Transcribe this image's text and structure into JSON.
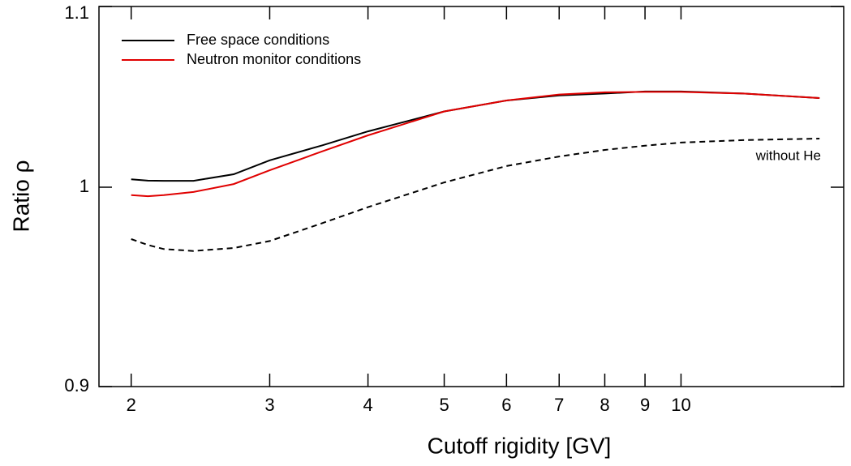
{
  "chart_data": {
    "type": "line",
    "xlabel": "Cutoff rigidity [GV]",
    "ylabel": "Ratio ρ",
    "x": [
      2,
      2.1,
      2.2,
      2.4,
      2.7,
      3,
      3.5,
      4,
      5,
      6,
      7,
      8,
      9,
      10,
      12,
      15
    ],
    "series": [
      {
        "name": "Free space conditions",
        "color": "#000000",
        "dash": false,
        "values": [
          1.004,
          1.0033,
          1.0032,
          1.0032,
          1.0065,
          1.0135,
          1.021,
          1.028,
          1.038,
          1.0435,
          1.046,
          1.047,
          1.048,
          1.048,
          1.047,
          1.0447
        ]
      },
      {
        "name": "Neutron monitor conditions",
        "color": "#e00000",
        "dash": false,
        "values": [
          0.996,
          0.9955,
          0.996,
          0.9976,
          1.0016,
          1.0085,
          1.018,
          1.026,
          1.038,
          1.0435,
          1.0465,
          1.0476,
          1.0478,
          1.0478,
          1.047,
          1.0447
        ]
      },
      {
        "color": "#000000",
        "dash": true,
        "values": [
          0.974,
          0.971,
          0.969,
          0.968,
          0.9695,
          0.973,
          0.982,
          0.99,
          1.0024,
          1.0106,
          1.0154,
          1.0187,
          1.0208,
          1.0224,
          1.0236,
          1.0244
        ]
      }
    ],
    "annotation": "without He",
    "xlog": true,
    "xlim": [
      1.82,
      16.1
    ],
    "xticks": [
      2,
      3,
      4,
      5,
      6,
      7,
      8,
      9,
      10
    ],
    "ylim": [
      0.9,
      1.1
    ],
    "yticks": [
      0.9,
      1,
      1.1
    ],
    "legend": "upper left"
  }
}
